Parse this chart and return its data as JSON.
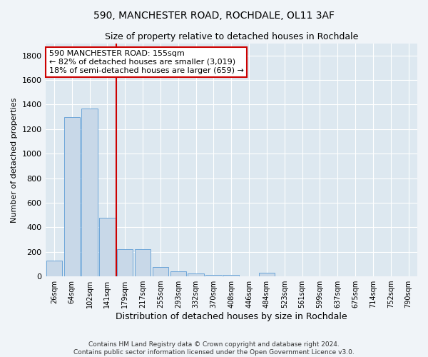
{
  "title": "590, MANCHESTER ROAD, ROCHDALE, OL11 3AF",
  "subtitle": "Size of property relative to detached houses in Rochdale",
  "xlabel": "Distribution of detached houses by size in Rochdale",
  "ylabel": "Number of detached properties",
  "footer": "Contains HM Land Registry data © Crown copyright and database right 2024.\nContains public sector information licensed under the Open Government Licence v3.0.",
  "bar_labels": [
    "26sqm",
    "64sqm",
    "102sqm",
    "141sqm",
    "179sqm",
    "217sqm",
    "255sqm",
    "293sqm",
    "332sqm",
    "370sqm",
    "408sqm",
    "446sqm",
    "484sqm",
    "523sqm",
    "561sqm",
    "599sqm",
    "637sqm",
    "675sqm",
    "714sqm",
    "752sqm",
    "790sqm"
  ],
  "bar_values": [
    130,
    1300,
    1370,
    480,
    220,
    220,
    75,
    40,
    25,
    15,
    15,
    0,
    30,
    0,
    0,
    0,
    0,
    0,
    0,
    0,
    0
  ],
  "bar_color": "#c8d8e8",
  "bar_edgecolor": "#5b9bd5",
  "vline_color": "#cc0000",
  "annotation_box_text": "590 MANCHESTER ROAD: 155sqm\n← 82% of detached houses are smaller (3,019)\n18% of semi-detached houses are larger (659) →",
  "ylim": [
    0,
    1900
  ],
  "yticks": [
    0,
    200,
    400,
    600,
    800,
    1000,
    1200,
    1400,
    1600,
    1800
  ],
  "bg_color": "#dde8f0",
  "fig_color": "#f0f4f8"
}
